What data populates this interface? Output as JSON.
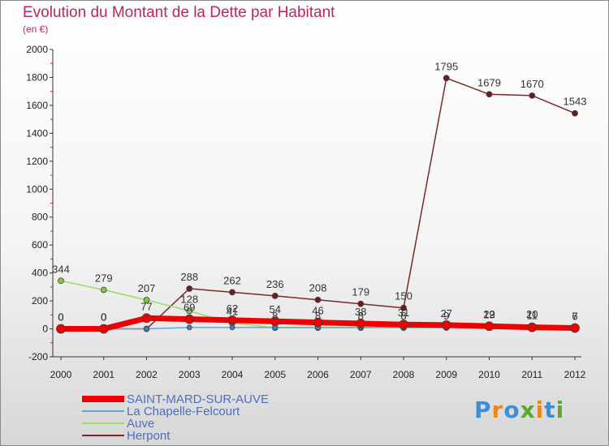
{
  "chart_data": {
    "type": "line",
    "title": "Evolution du Montant de la Dette par Habitant",
    "subtitle": "(en €)",
    "xlabel": "",
    "ylabel": "",
    "ylim": [
      -200,
      2000
    ],
    "y_ticks": [
      -200,
      0,
      200,
      400,
      600,
      800,
      1000,
      1200,
      1400,
      1600,
      1800,
      2000
    ],
    "categories": [
      "2000",
      "2001",
      "2002",
      "2003",
      "2004",
      "2005",
      "2006",
      "2007",
      "2008",
      "2009",
      "2010",
      "2011",
      "2012"
    ],
    "series": [
      {
        "name": "Herpont",
        "color": "#7a2a2a",
        "marker": "#6b1c1c",
        "values": [
          0,
          0,
          0,
          288,
          262,
          236,
          208,
          179,
          150,
          1795,
          1679,
          1670,
          1543
        ],
        "labels": [
          "0",
          "0",
          "",
          "288",
          "262",
          "236",
          "208",
          "179",
          "150",
          "1795",
          "1679",
          "1670",
          "1543"
        ]
      },
      {
        "name": "Auve",
        "color": "#99dd66",
        "marker": "#7dc843",
        "values": [
          344,
          279,
          207,
          128,
          41,
          8,
          8,
          8,
          8,
          9,
          22,
          20,
          7
        ],
        "labels": [
          "344",
          "279",
          "207",
          "128",
          "41",
          "8",
          "8",
          "8",
          "8",
          "9",
          "22",
          "20",
          "7"
        ]
      },
      {
        "name": "La Chapelle-Felcourt",
        "color": "#6aa2d4",
        "marker": "#3b7fc4",
        "values": [
          0,
          0,
          0,
          10,
          10,
          10,
          10,
          10,
          10,
          10,
          10,
          10,
          10
        ],
        "labels": [
          "0",
          "0",
          "",
          "",
          "",
          "",
          "",
          "",
          "",
          "",
          "",
          "",
          ""
        ]
      },
      {
        "name": "SAINT-MARD-SUR-AUVE",
        "color": "#ee0000",
        "marker": "#ee0000",
        "values": [
          0,
          0,
          77,
          69,
          62,
          54,
          46,
          38,
          31,
          27,
          19,
          11,
          6
        ],
        "labels": [
          "0",
          "0",
          "77",
          "69",
          "62",
          "54",
          "46",
          "38",
          "31",
          "27",
          "19",
          "11",
          "6"
        ]
      }
    ],
    "legend": {
      "position": "bottom-left",
      "entries": [
        "SAINT-MARD-SUR-AUVE",
        "La Chapelle-Felcourt",
        "Auve",
        "Herpont"
      ]
    },
    "grid": false
  },
  "logo": {
    "text": "Proxiti",
    "colors": [
      "#3b8fd6",
      "#e58a1f",
      "#3b8fd6",
      "#5aa832",
      "#e58a1f",
      "#3b8fd6",
      "#5aa832"
    ]
  }
}
